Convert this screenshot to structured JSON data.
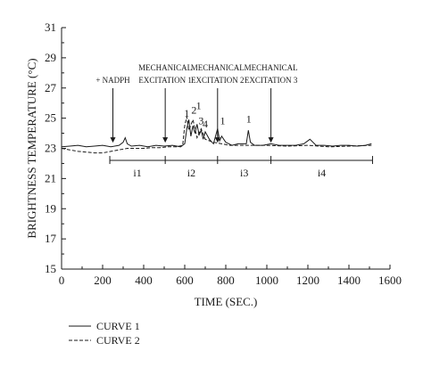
{
  "chart_data": {
    "type": "line",
    "xlabel": "TIME (SEC.)",
    "ylabel": "BRIGHTNESS TEMPERATURE (°C)",
    "xlim": [
      0,
      1600
    ],
    "ylim": [
      15,
      31
    ],
    "x_ticks": [
      "0",
      "200",
      "400",
      "600",
      "800",
      "1000",
      "1200",
      "1400",
      "1600"
    ],
    "y_ticks": [
      "15",
      "17",
      "19",
      "21",
      "23",
      "25",
      "27",
      "29",
      "31"
    ],
    "grid": false,
    "legend_position": "bottom-left",
    "series": [
      {
        "name": "CURVE 1",
        "style": "solid",
        "color": "#1a1a1a",
        "x": [
          0,
          40,
          80,
          120,
          160,
          200,
          240,
          280,
          300,
          310,
          320,
          340,
          380,
          420,
          460,
          500,
          540,
          580,
          600,
          610,
          620,
          630,
          640,
          650,
          660,
          670,
          680,
          690,
          700,
          720,
          740,
          760,
          770,
          780,
          800,
          830,
          860,
          900,
          910,
          920,
          940,
          980,
          1020,
          1060,
          1100,
          1140,
          1180,
          1210,
          1240,
          1280,
          1320,
          1360,
          1400,
          1440,
          1480,
          1510
        ],
        "y": [
          23.1,
          23.15,
          23.2,
          23.1,
          23.15,
          23.2,
          23.1,
          23.2,
          23.4,
          23.7,
          23.3,
          23.15,
          23.2,
          23.1,
          23.2,
          23.15,
          23.2,
          23.1,
          23.3,
          24.3,
          24.9,
          23.8,
          24.5,
          24.0,
          24.6,
          23.9,
          24.2,
          23.6,
          24.1,
          23.6,
          23.3,
          24.3,
          23.5,
          23.8,
          23.4,
          23.2,
          23.3,
          23.3,
          24.2,
          23.4,
          23.2,
          23.2,
          23.3,
          23.2,
          23.2,
          23.2,
          23.3,
          23.6,
          23.2,
          23.2,
          23.15,
          23.2,
          23.2,
          23.15,
          23.2,
          23.3
        ]
      },
      {
        "name": "CURVE 2",
        "style": "dashed",
        "color": "#1a1a1a",
        "x": [
          0,
          40,
          80,
          120,
          160,
          200,
          240,
          280,
          320,
          360,
          400,
          440,
          480,
          520,
          560,
          590,
          600,
          610,
          620,
          640,
          660,
          680,
          700,
          740,
          780,
          820,
          860,
          900,
          1000,
          1100,
          1200,
          1300,
          1400,
          1510
        ],
        "y": [
          23.0,
          22.9,
          22.8,
          22.75,
          22.7,
          22.7,
          22.8,
          22.9,
          23.0,
          23.0,
          23.0,
          23.05,
          23.05,
          23.1,
          23.1,
          23.2,
          24.5,
          25.1,
          24.2,
          24.9,
          23.7,
          24.3,
          23.6,
          23.4,
          23.3,
          23.2,
          23.2,
          23.2,
          23.2,
          23.15,
          23.2,
          23.1,
          23.15,
          23.2
        ]
      }
    ],
    "event_markers": [
      {
        "label": [
          "+ NADPH"
        ],
        "x": 250
      },
      {
        "label": [
          "MECHANICAL",
          "EXCITATION  1"
        ],
        "x": 505
      },
      {
        "label": [
          "MECHANICAL",
          "EXCITATION  2"
        ],
        "x": 760
      },
      {
        "label": [
          "MECHANICAL",
          "EXCITATION  3"
        ],
        "x": 1020
      }
    ],
    "peak_labels": [
      {
        "text": "1",
        "x": 610,
        "y": 25.1
      },
      {
        "text": "2",
        "x": 645,
        "y": 25.3
      },
      {
        "text": "1",
        "x": 668,
        "y": 25.6
      },
      {
        "text": "3",
        "x": 680,
        "y": 24.6
      },
      {
        "text": "4",
        "x": 700,
        "y": 24.4
      },
      {
        "text": "1",
        "x": 785,
        "y": 24.6
      },
      {
        "text": "1",
        "x": 912,
        "y": 24.7
      }
    ],
    "intervals": [
      {
        "label": "i1",
        "x0": 235,
        "x1": 505
      },
      {
        "label": "i2",
        "x0": 505,
        "x1": 760
      },
      {
        "label": "i3",
        "x0": 760,
        "x1": 1020
      },
      {
        "label": "i4",
        "x0": 1020,
        "x1": 1515
      }
    ],
    "interval_baseline_y": 22.2,
    "legend": [
      {
        "label": "CURVE 1",
        "style": "solid"
      },
      {
        "label": "CURVE 2",
        "style": "dashed"
      }
    ]
  }
}
